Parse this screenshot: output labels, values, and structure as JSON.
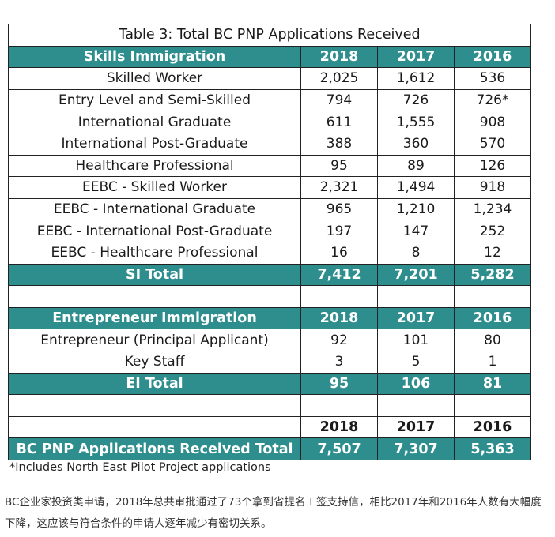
{
  "table": {
    "title": "Table 3: Total BC PNP Applications Received",
    "skills": {
      "header": [
        "Skills Immigration",
        "2018",
        "2017",
        "2016"
      ],
      "rows": [
        [
          "Skilled Worker",
          "2,025",
          "1,612",
          "536"
        ],
        [
          "Entry Level and Semi-Skilled",
          "794",
          "726",
          "726*"
        ],
        [
          "International Graduate",
          "611",
          "1,555",
          "908"
        ],
        [
          "International Post-Graduate",
          "388",
          "360",
          "570"
        ],
        [
          "Healthcare Professional",
          "95",
          "89",
          "126"
        ],
        [
          "EEBC - Skilled Worker",
          "2,321",
          "1,494",
          "918"
        ],
        [
          "EEBC - International Graduate",
          "965",
          "1,210",
          "1,234"
        ],
        [
          "EEBC - International Post-Graduate",
          "197",
          "147",
          "252"
        ],
        [
          "EEBC - Healthcare Professional",
          "16",
          "8",
          "12"
        ]
      ],
      "total": [
        "SI Total",
        "7,412",
        "7,201",
        "5,282"
      ]
    },
    "entrepreneur": {
      "header": [
        "Entrepreneur Immigration",
        "2018",
        "2017",
        "2016"
      ],
      "rows": [
        [
          "Entrepreneur (Principal Applicant)",
          "92",
          "101",
          "80"
        ],
        [
          "Key Staff",
          "3",
          "5",
          "1"
        ]
      ],
      "total": [
        "EI Total",
        "95",
        "106",
        "81"
      ]
    },
    "grand": {
      "years": [
        "2018",
        "2017",
        "2016"
      ],
      "total": [
        "BC PNP Applications Received Total",
        "7,507",
        "7,307",
        "5,363"
      ]
    }
  },
  "footnote": "*Includes North East Pilot Project applications",
  "caption": "BC企业家投资类申请，2018年总共审批通过了73个拿到省提名工签支持信，相比2017年和2016年人数有大幅度下降，这应该与符合条件的申请人逐年减少有密切关系。",
  "colors": {
    "header_bg": "#2e8e8e",
    "header_text": "#ffffff",
    "border": "#222222"
  }
}
